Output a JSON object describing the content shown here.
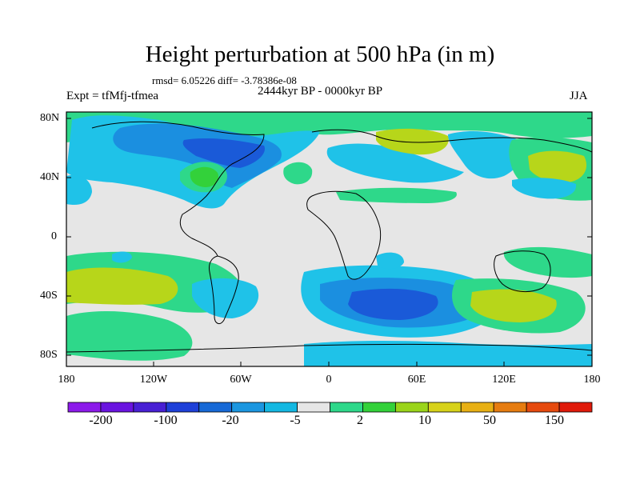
{
  "title": "Height perturbation at 500 hPa (in m)",
  "stats": "rmsd= 6.05226 diff= -3.78386e-08",
  "period": "2444kyr BP - 0000kyr BP",
  "experiment": "Expt = tfMfj-tfmea",
  "season": "JJA",
  "lat_labels": [
    "80N",
    "40N",
    "0",
    "40S",
    "80S"
  ],
  "lon_labels": [
    "180",
    "120W",
    "60W",
    "0",
    "60E",
    "120E",
    "180"
  ],
  "colorbar": {
    "labels": [
      "-200",
      "-100",
      "-20",
      "-5",
      "2",
      "10",
      "50",
      "150"
    ],
    "colors": [
      "#8c1aea",
      "#6a14e0",
      "#4820d4",
      "#1e40d8",
      "#1769d6",
      "#1b96e0",
      "#14b8e2",
      "#e6e6e6",
      "#2ed88a",
      "#33d13a",
      "#9ad41a",
      "#d7d21a",
      "#e8b014",
      "#e67c10",
      "#e64a0e",
      "#e01a0a"
    ]
  },
  "palette": {
    "land_outline": "#000000",
    "neutral": "#e6e6e6",
    "light_blue": "#1fc2e8",
    "blue": "#1b8fe0",
    "dark_blue": "#1a5ad8",
    "teal_green": "#2ed88a",
    "green": "#33d13a",
    "yellow_green": "#b7d61a"
  }
}
